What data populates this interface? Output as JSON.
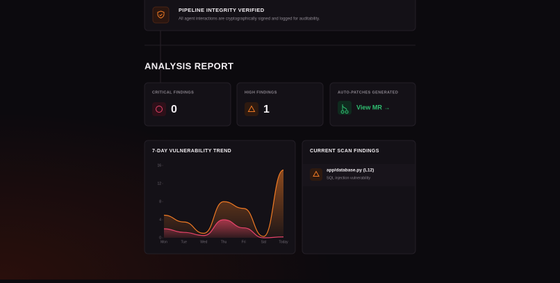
{
  "banner": {
    "title": "PIPELINE INTEGRITY VERIFIED",
    "subtitle": "All agent interactions are cryptographically signed and logged for auditability."
  },
  "section_title": "ANALYSIS REPORT",
  "stats": [
    {
      "label": "CRITICAL FINDINGS",
      "value": 0
    },
    {
      "label": "HIGH FINDINGS",
      "value": 1
    },
    {
      "label": "AUTO-PATCHES GENERATED",
      "link": "View MR →"
    }
  ],
  "trend_chart": {
    "type": "area",
    "title": "7-DAY VULNERABILITY TREND",
    "categories": [
      "Mon",
      "Tue",
      "Wed",
      "Thu",
      "Fri",
      "Sat",
      "Today"
    ],
    "series": [
      {
        "color": "#f07a24",
        "values": [
          5,
          3.5,
          1,
          8,
          6.5,
          0.3,
          15
        ]
      },
      {
        "color": "#e8436a",
        "values": [
          2,
          1.2,
          0.5,
          4,
          2.2,
          0,
          0.2
        ]
      }
    ],
    "ylim": [
      0,
      16
    ],
    "yticks": [
      0,
      4,
      8,
      12,
      16
    ]
  },
  "findings": {
    "title": "CURRENT SCAN FINDINGS",
    "items": [
      {
        "file": "app/database.py (L12)",
        "description": "SQL injection vulnerability"
      }
    ]
  }
}
